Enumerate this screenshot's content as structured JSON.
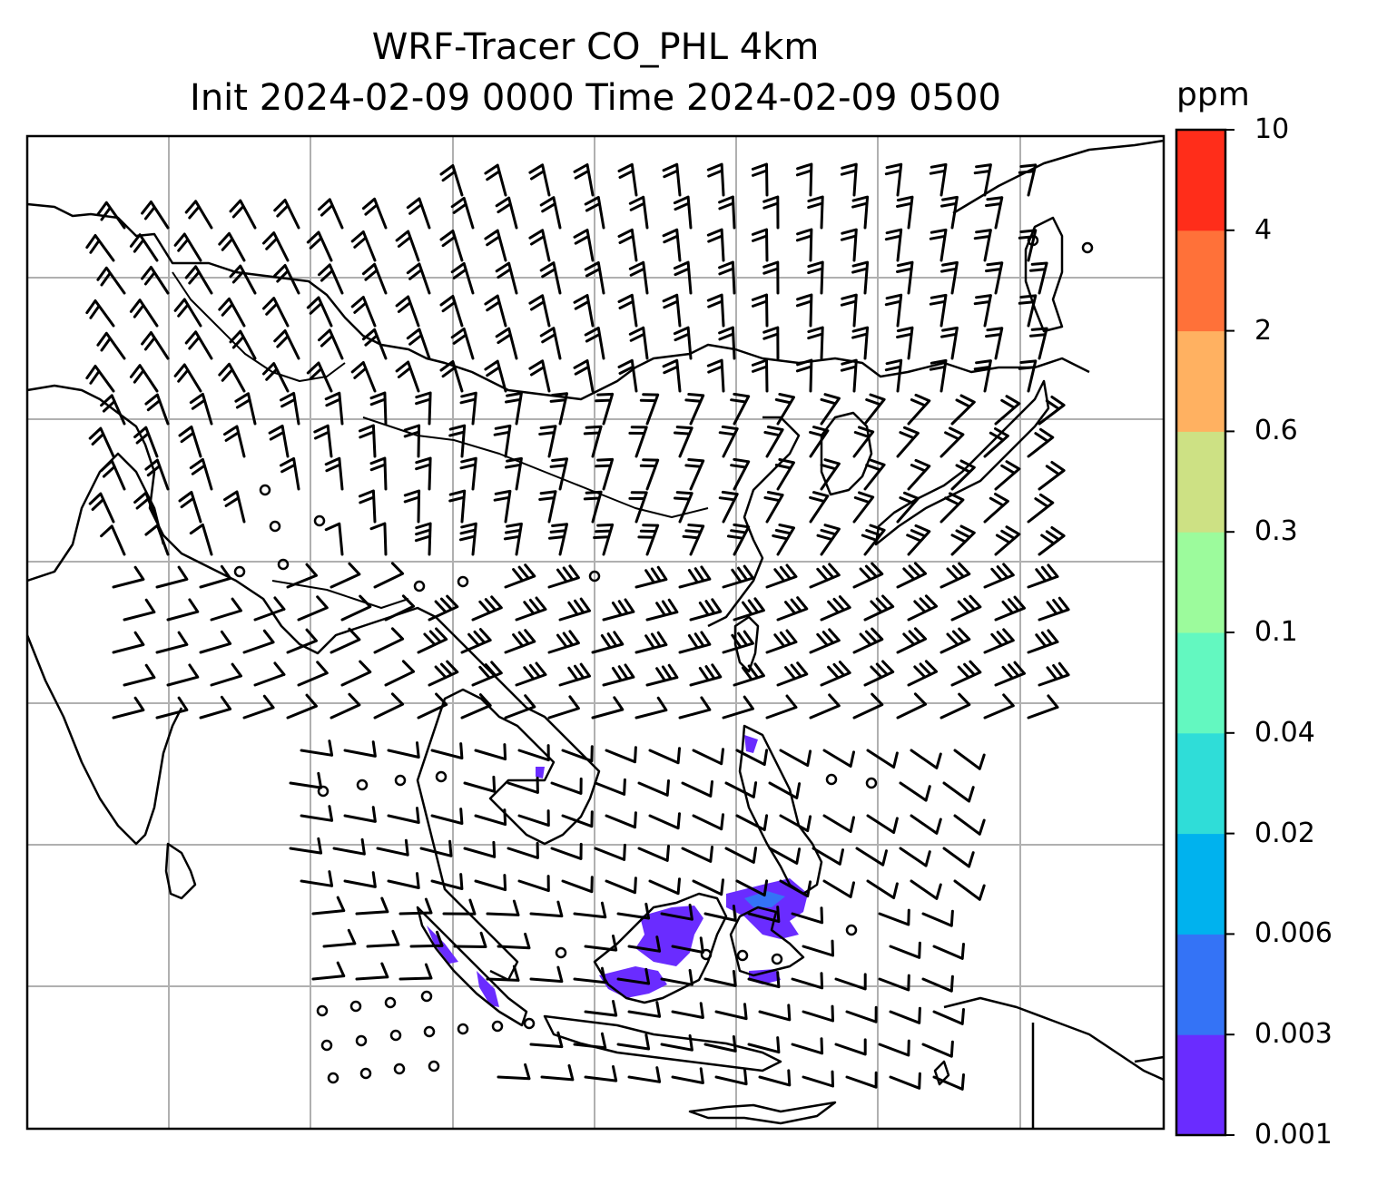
{
  "title_line1": "WRF-Tracer CO_PHL 4km",
  "title_line2": "Init 2024-02-09 0000 Time 2024-02-09 0500",
  "colorbar": {
    "unit": "ppm",
    "levels": [
      "0.001",
      "0.003",
      "0.006",
      "0.02",
      "0.04",
      "0.1",
      "0.3",
      "0.6",
      "2",
      "4",
      "10"
    ],
    "colors": [
      "#6a2cff",
      "#3473f6",
      "#00b2ee",
      "#2fddd8",
      "#63f8c0",
      "#9cfb9c",
      "#cde184",
      "#ffb161",
      "#ff7139",
      "#ff2d1a"
    ]
  },
  "map": {
    "frame_color": "#000000",
    "grid_color": "#b0b0b0",
    "coastline_color": "#000000",
    "tracer_color": "#6a2cff"
  }
}
